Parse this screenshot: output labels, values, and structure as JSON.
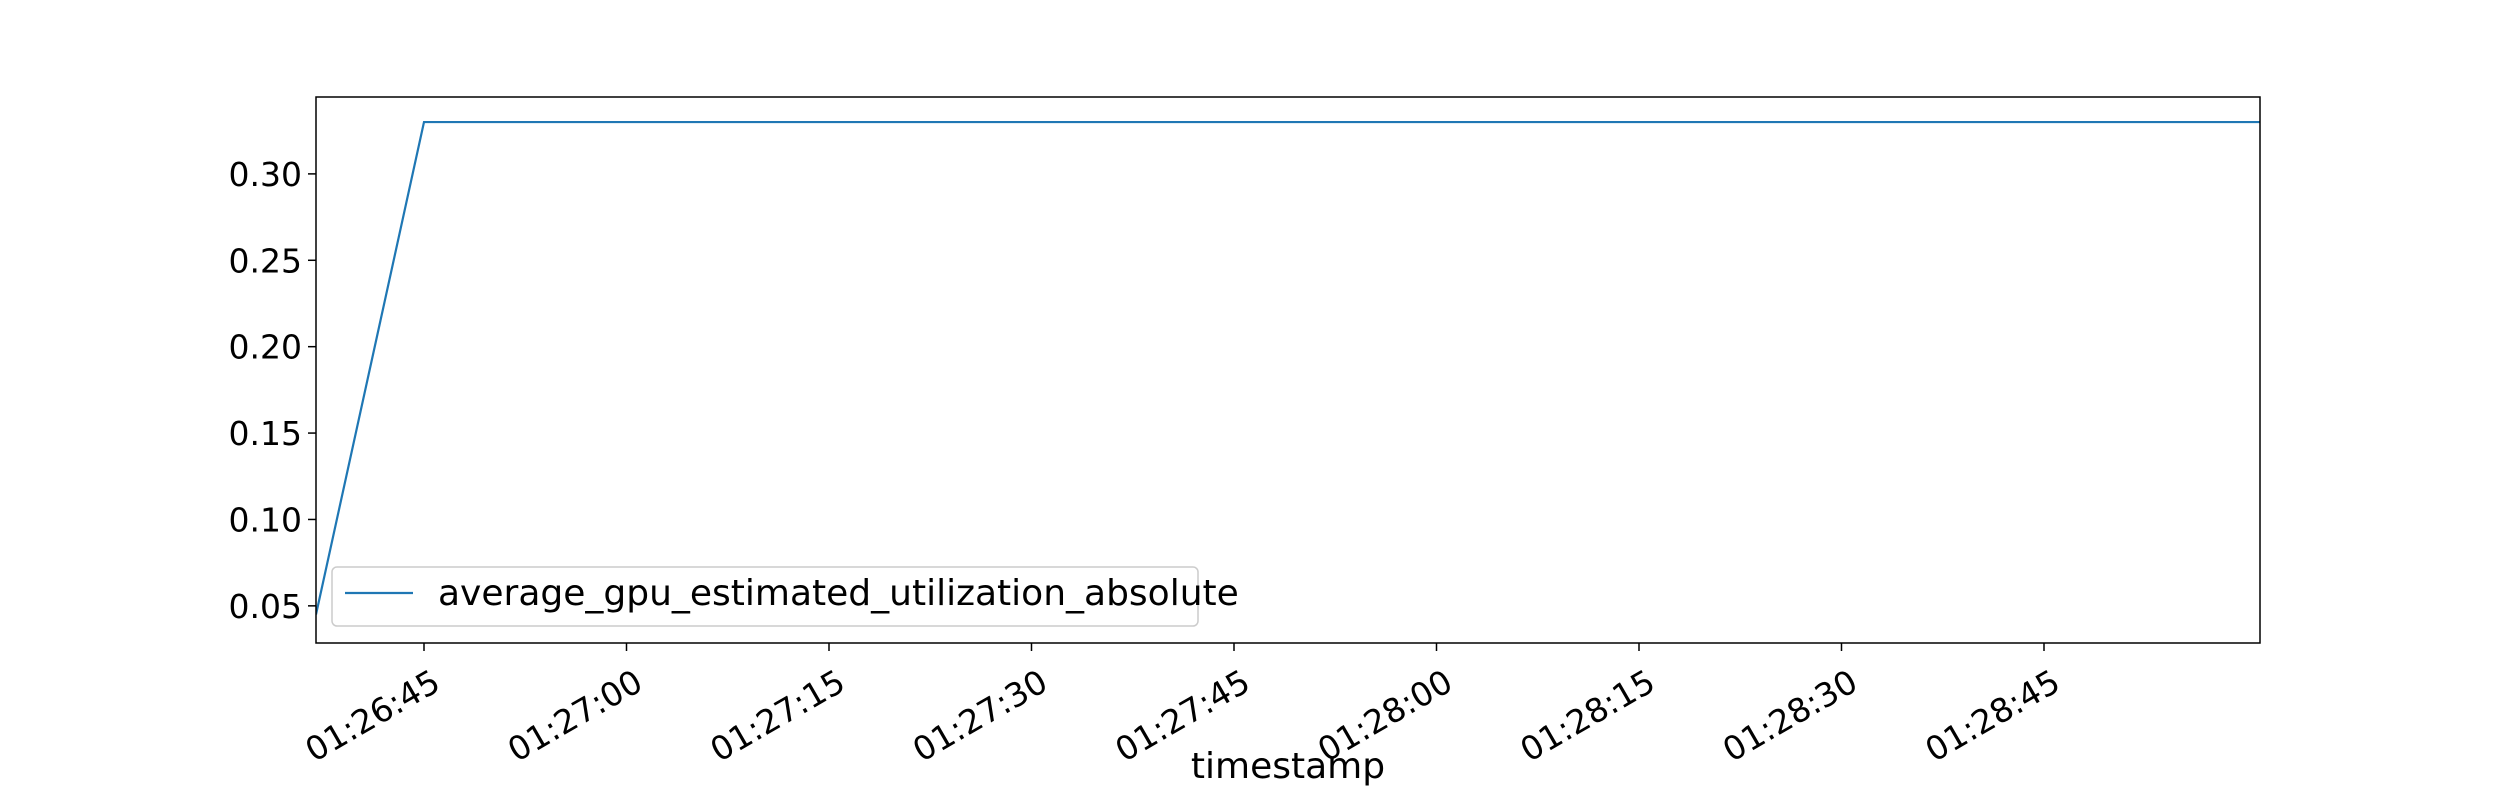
{
  "chart_data": {
    "type": "line",
    "title": "",
    "xlabel": "timestamp",
    "ylabel": "",
    "grid": false,
    "legend_position": "lower left",
    "x_unit": "time (HH:MM:SS)",
    "xlim": [
      "01:26:37",
      "01:29:01"
    ],
    "ylim": [
      0.0285,
      0.3445
    ],
    "x_ticks": [
      "01:26:45",
      "01:27:00",
      "01:27:15",
      "01:27:30",
      "01:27:45",
      "01:28:00",
      "01:28:15",
      "01:28:30",
      "01:28:45"
    ],
    "y_ticks": [
      "0.05",
      "0.10",
      "0.15",
      "0.20",
      "0.25",
      "0.30"
    ],
    "series": [
      {
        "name": "average_gpu_estimated_utilization_absolute",
        "color": "#1f77b4",
        "points": [
          {
            "x": "01:26:37",
            "y": 0.045
          },
          {
            "x": "01:26:45",
            "y": 0.33
          },
          {
            "x": "01:29:01",
            "y": 0.33
          }
        ]
      }
    ]
  }
}
